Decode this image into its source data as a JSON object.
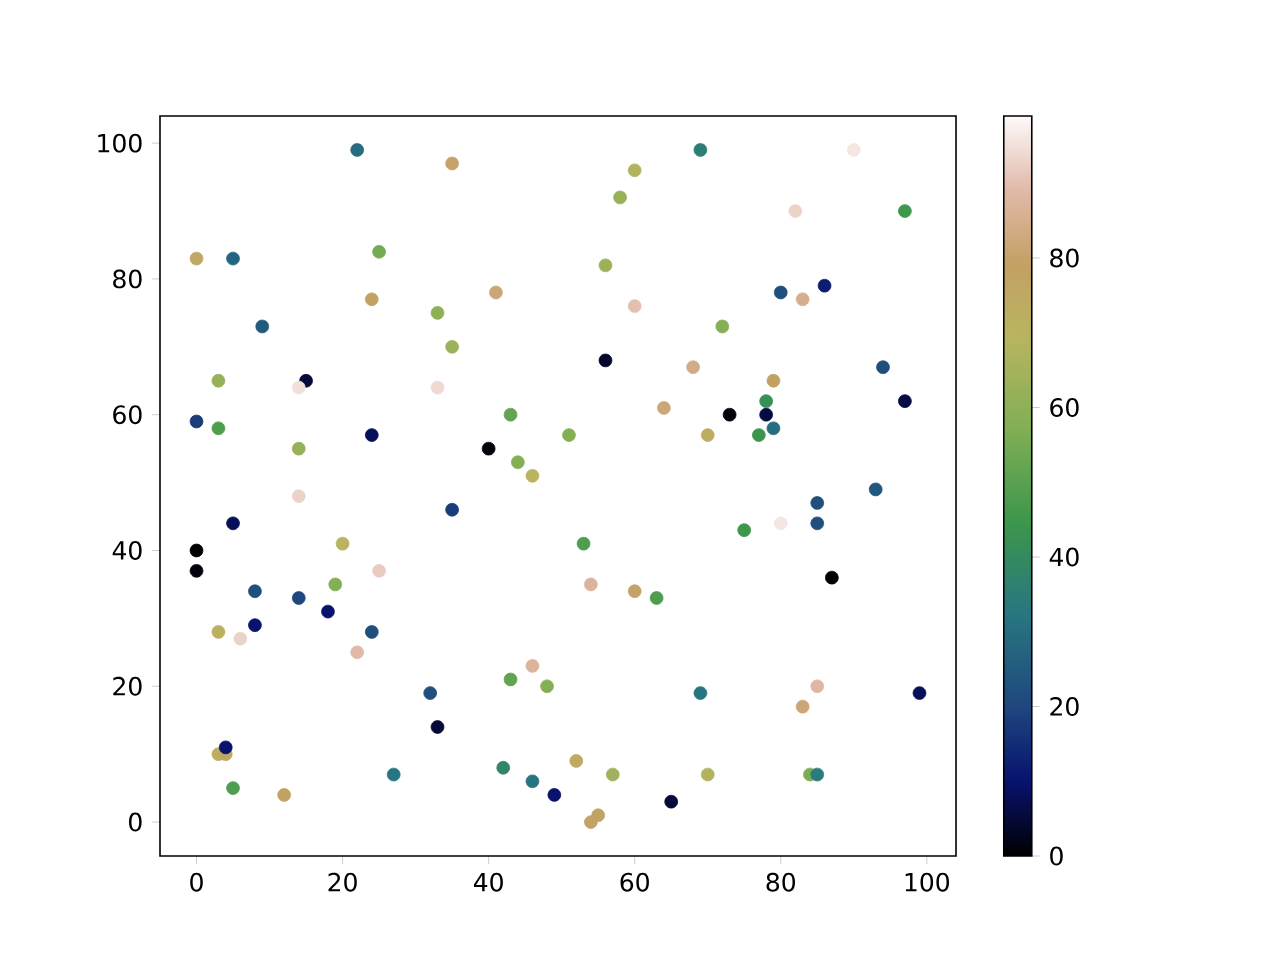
{
  "chart_data": {
    "type": "scatter",
    "marker": "circle",
    "x": [
      22,
      35,
      0,
      5,
      25,
      24,
      41,
      33,
      9,
      35,
      3,
      15,
      14,
      33,
      0,
      3,
      24,
      14,
      40,
      43,
      44,
      46,
      69,
      90,
      60,
      58,
      82,
      97,
      56,
      80,
      86,
      60,
      83,
      72,
      56,
      68,
      94,
      79,
      64,
      73,
      78,
      78,
      97,
      51,
      70,
      77,
      79,
      14,
      5,
      20,
      0,
      0,
      25,
      8,
      19,
      14,
      18,
      3,
      6,
      8,
      24,
      22,
      32,
      33,
      3,
      4,
      4,
      5,
      12,
      27,
      35,
      46,
      43,
      48,
      42,
      46,
      49,
      85,
      93,
      85,
      80,
      75,
      87,
      54,
      60,
      63,
      69,
      85,
      83,
      99,
      52,
      57,
      70,
      84,
      85,
      65,
      54,
      55,
      53
    ],
    "values": [
      99,
      97,
      83,
      83,
      84,
      77,
      78,
      75,
      73,
      70,
      65,
      65,
      64,
      64,
      59,
      58,
      57,
      55,
      55,
      60,
      53,
      51,
      99,
      99,
      96,
      92,
      90,
      90,
      82,
      78,
      79,
      76,
      77,
      73,
      68,
      67,
      67,
      65,
      61,
      60,
      60,
      62,
      62,
      57,
      57,
      57,
      58,
      48,
      44,
      41,
      40,
      37,
      37,
      34,
      35,
      33,
      31,
      28,
      27,
      29,
      28,
      25,
      19,
      14,
      10,
      10,
      11,
      5,
      4,
      7,
      46,
      23,
      21,
      20,
      8,
      6,
      4,
      47,
      49,
      44,
      44,
      43,
      36,
      35,
      34,
      33,
      19,
      20,
      17,
      19,
      9,
      7,
      7,
      7,
      7,
      3,
      0,
      1,
      41
    ],
    "cvalues": [
      30,
      80,
      75,
      28,
      55,
      78,
      82,
      60,
      25,
      63,
      62,
      5,
      95,
      94,
      18,
      48,
      8,
      62,
      1,
      52,
      58,
      70,
      35,
      96,
      68,
      62,
      93,
      45,
      63,
      22,
      12,
      90,
      85,
      58,
      4,
      84,
      22,
      78,
      82,
      1,
      6,
      42,
      6,
      58,
      73,
      44,
      30,
      93,
      8,
      70,
      0,
      1,
      92,
      22,
      58,
      20,
      10,
      72,
      93,
      10,
      22,
      89,
      22,
      5,
      72,
      75,
      10,
      48,
      78,
      32,
      18,
      87,
      52,
      58,
      38,
      32,
      10,
      22,
      24,
      22,
      96,
      45,
      0,
      87,
      80,
      48,
      32,
      88,
      82,
      8,
      74,
      64,
      68,
      56,
      34,
      5,
      80,
      77,
      48
    ],
    "xlim": [
      -5,
      104
    ],
    "ylim": [
      -5,
      104
    ],
    "xticks": [
      0,
      20,
      40,
      60,
      80,
      100
    ],
    "yticks": [
      0,
      20,
      40,
      60,
      80,
      100
    ],
    "clim": [
      0,
      99
    ],
    "cticks": [
      0,
      20,
      40,
      60,
      80
    ]
  }
}
